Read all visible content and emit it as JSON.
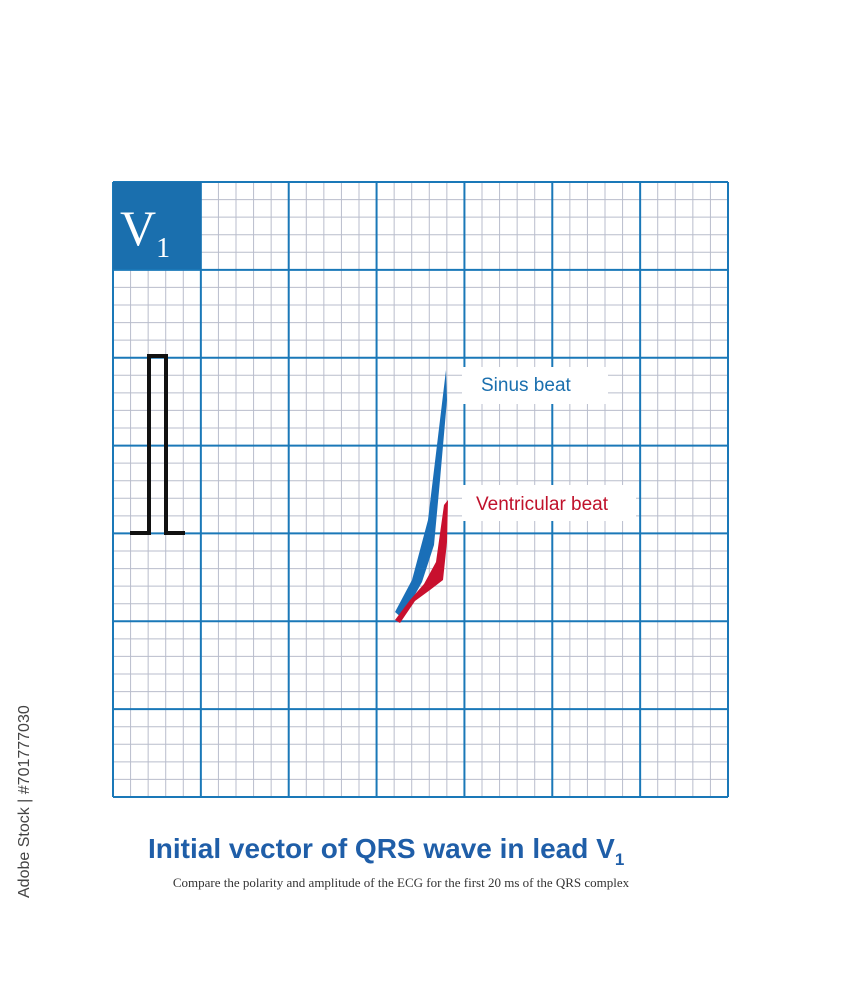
{
  "lead": {
    "letter": "V",
    "subscript": "1"
  },
  "labels": {
    "sinus": "Sinus beat",
    "ventricular": "Ventricular beat"
  },
  "caption": {
    "title": "Initial vector of QRS wave in lead V",
    "title_subscript": "1",
    "subtitle": "Compare the polarity and amplitude of the ECG for the first 20 ms of the QRS complex"
  },
  "watermark": "Adobe Stock | #701777030"
}
